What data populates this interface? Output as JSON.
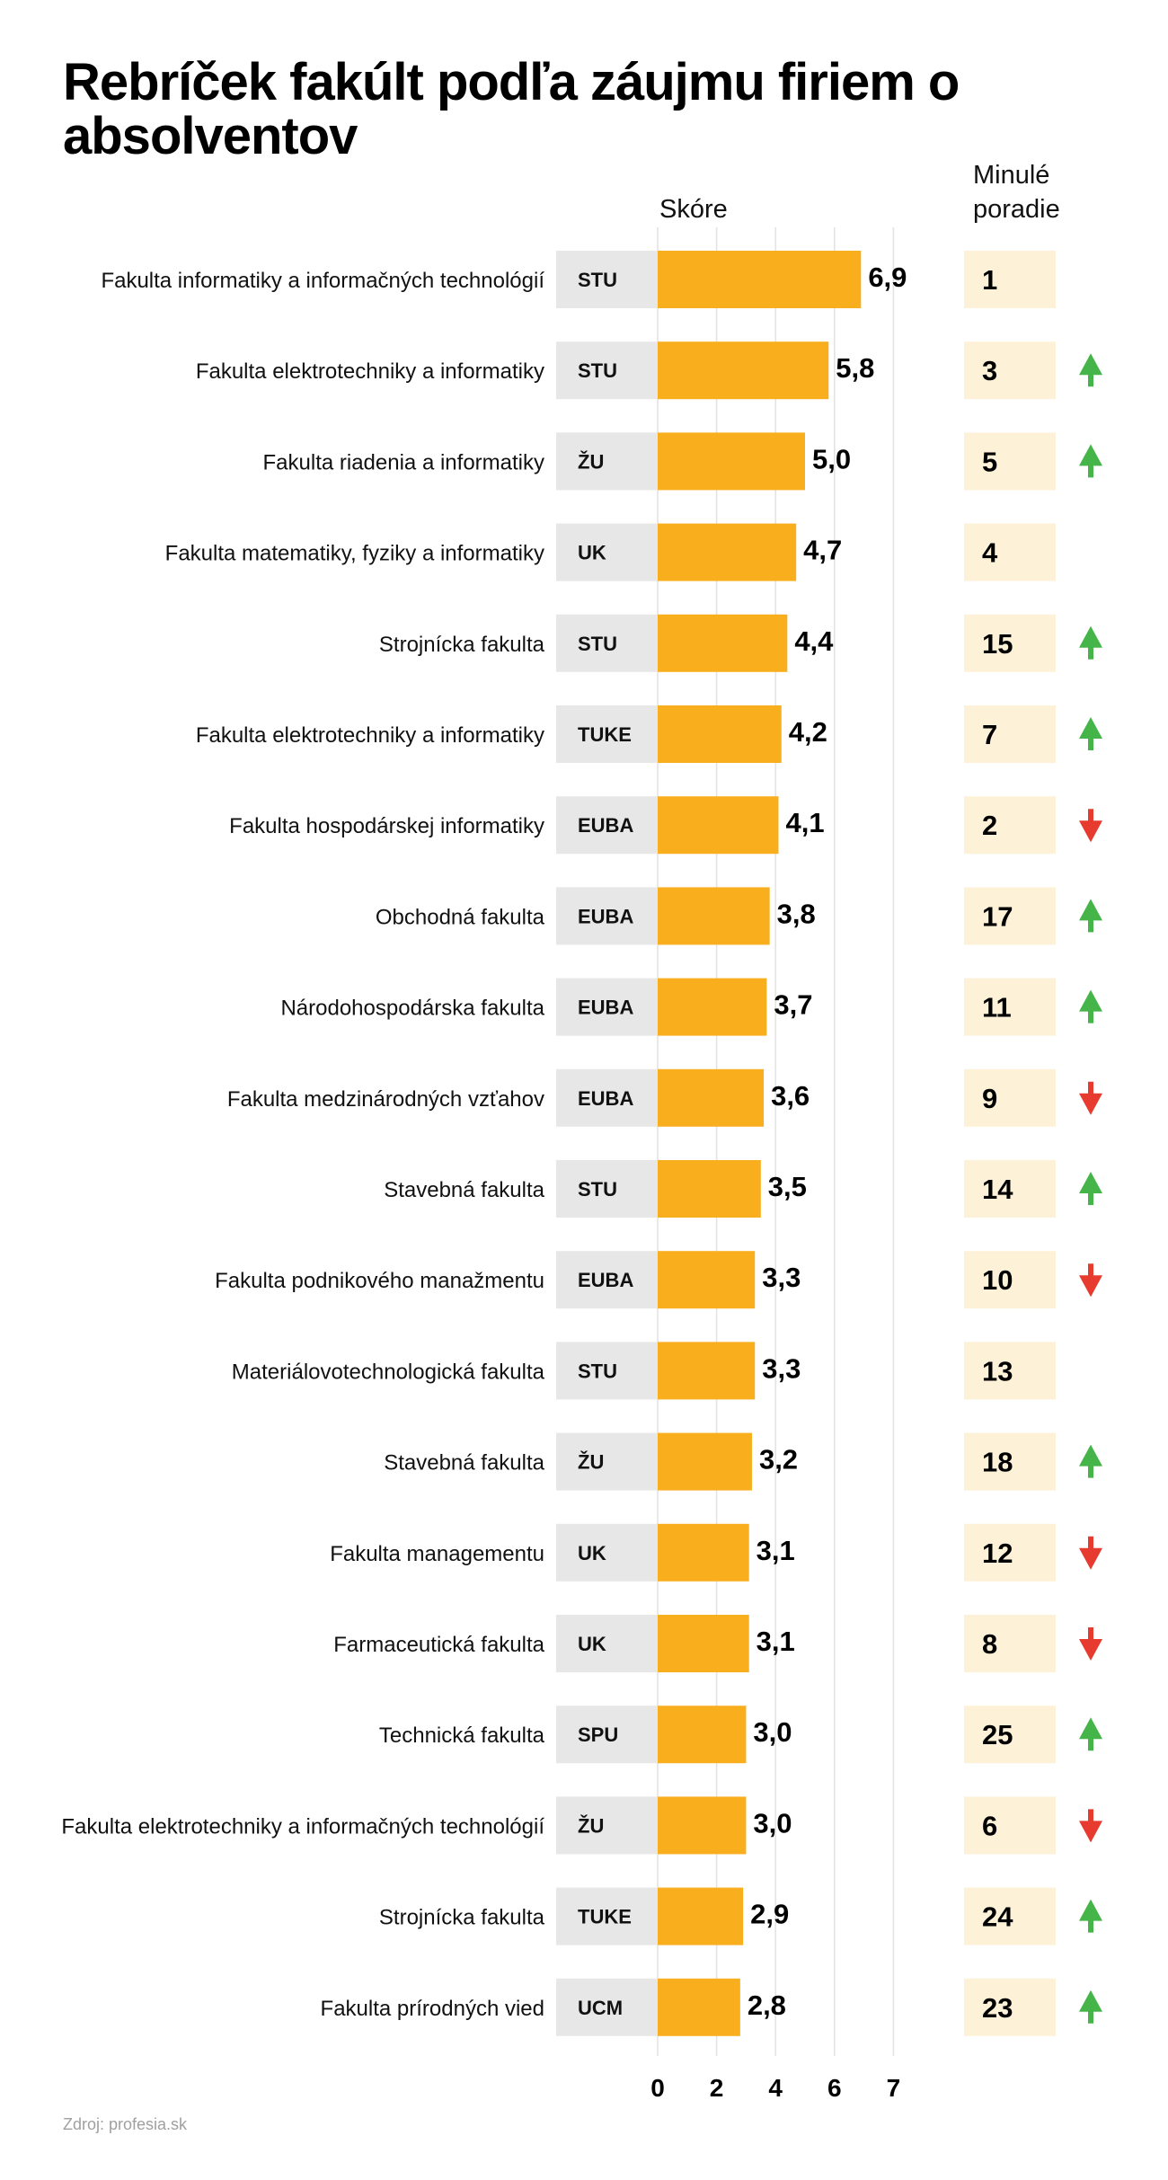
{
  "chart_data": {
    "type": "bar",
    "orientation": "horizontal",
    "title": "Rebríček fakúlt podľa záujmu firiem o absolventov",
    "xlabel": "Skóre",
    "secondary_column_label": "Minulé poradie",
    "xlim": [
      0,
      7
    ],
    "x_ticks": [
      0,
      2,
      4,
      6,
      7
    ],
    "x_tick_labels": [
      "0",
      "2",
      "4",
      "6",
      "7"
    ],
    "grid": true,
    "source": "Zdroj: profesia.sk",
    "colors": {
      "bar": "#F8AE1D",
      "university_box": "#E7E7E7",
      "previous_rank_box": "#FDF1D7",
      "gridline": "#E2E2E2",
      "up": "#45B549",
      "down": "#E63B2E"
    },
    "rows": [
      {
        "faculty": "Fakulta informatiky a informačných technológií",
        "university": "STU",
        "score": 6.9,
        "score_label": "6,9",
        "previous_rank": 1,
        "trend": "none"
      },
      {
        "faculty": "Fakulta elektrotechniky a informatiky",
        "university": "STU",
        "score": 5.8,
        "score_label": "5,8",
        "previous_rank": 3,
        "trend": "up"
      },
      {
        "faculty": "Fakulta riadenia a informatiky",
        "university": "ŽU",
        "score": 5.0,
        "score_label": "5,0",
        "previous_rank": 5,
        "trend": "up"
      },
      {
        "faculty": "Fakulta matematiky, fyziky a informatiky",
        "university": "UK",
        "score": 4.7,
        "score_label": "4,7",
        "previous_rank": 4,
        "trend": "none"
      },
      {
        "faculty": "Strojnícka fakulta",
        "university": "STU",
        "score": 4.4,
        "score_label": "4,4",
        "previous_rank": 15,
        "trend": "up"
      },
      {
        "faculty": "Fakulta elektrotechniky a informatiky",
        "university": "TUKE",
        "score": 4.2,
        "score_label": "4,2",
        "previous_rank": 7,
        "trend": "up"
      },
      {
        "faculty": "Fakulta hospodárskej informatiky",
        "university": "EUBA",
        "score": 4.1,
        "score_label": "4,1",
        "previous_rank": 2,
        "trend": "down"
      },
      {
        "faculty": "Obchodná fakulta",
        "university": "EUBA",
        "score": 3.8,
        "score_label": "3,8",
        "previous_rank": 17,
        "trend": "up"
      },
      {
        "faculty": "Národohospodárska fakulta",
        "university": "EUBA",
        "score": 3.7,
        "score_label": "3,7",
        "previous_rank": 11,
        "trend": "up"
      },
      {
        "faculty": "Fakulta medzinárodných vzťahov",
        "university": "EUBA",
        "score": 3.6,
        "score_label": "3,6",
        "previous_rank": 9,
        "trend": "down"
      },
      {
        "faculty": "Stavebná fakulta",
        "university": "STU",
        "score": 3.5,
        "score_label": "3,5",
        "previous_rank": 14,
        "trend": "up"
      },
      {
        "faculty": "Fakulta podnikového manažmentu",
        "university": "EUBA",
        "score": 3.3,
        "score_label": "3,3",
        "previous_rank": 10,
        "trend": "down"
      },
      {
        "faculty": "Materiálovotechnologická fakulta",
        "university": "STU",
        "score": 3.3,
        "score_label": "3,3",
        "previous_rank": 13,
        "trend": "none"
      },
      {
        "faculty": "Stavebná fakulta",
        "university": "ŽU",
        "score": 3.2,
        "score_label": "3,2",
        "previous_rank": 18,
        "trend": "up"
      },
      {
        "faculty": "Fakulta managementu",
        "university": "UK",
        "score": 3.1,
        "score_label": "3,1",
        "previous_rank": 12,
        "trend": "down"
      },
      {
        "faculty": "Farmaceutická fakulta",
        "university": "UK",
        "score": 3.1,
        "score_label": "3,1",
        "previous_rank": 8,
        "trend": "down"
      },
      {
        "faculty": "Technická fakulta",
        "university": "SPU",
        "score": 3.0,
        "score_label": "3,0",
        "previous_rank": 25,
        "trend": "up"
      },
      {
        "faculty": "Fakulta elektrotechniky a informačných technológií",
        "university": "ŽU",
        "score": 3.0,
        "score_label": "3,0",
        "previous_rank": 6,
        "trend": "down"
      },
      {
        "faculty": "Strojnícka fakulta",
        "university": "TUKE",
        "score": 2.9,
        "score_label": "2,9",
        "previous_rank": 24,
        "trend": "up"
      },
      {
        "faculty": "Fakulta prírodných vied",
        "university": "UCM",
        "score": 2.8,
        "score_label": "2,8",
        "previous_rank": 23,
        "trend": "up"
      }
    ]
  },
  "header": {
    "title": "Rebríček fakúlt podľa záujmu firiem o absolventov",
    "score_label": "Skóre",
    "previous_rank_label": "Minulé poradie"
  },
  "footer": {
    "source": "Zdroj: profesia.sk"
  }
}
